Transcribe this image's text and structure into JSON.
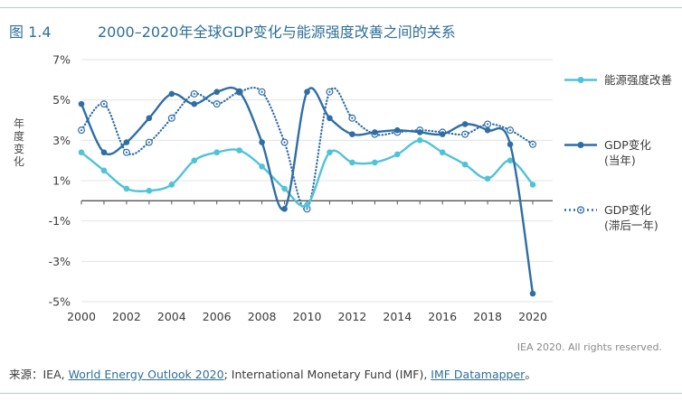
{
  "figure": {
    "number": "图 1.4",
    "title": "2000–2020年全球GDP变化与能源强度改善之间的关系",
    "credit": "IEA 2020. All rights reserved."
  },
  "source": {
    "prefix": "来源：IEA, ",
    "link1": "World Energy Outlook 2020",
    "middle": "; International Monetary Fund (IMF), ",
    "link2": "IMF Datamapper",
    "suffix": "。"
  },
  "legend": {
    "items": [
      {
        "line1": "能源强度改善",
        "line2": ""
      },
      {
        "line1": "GDP变化",
        "line2": "(当年)"
      },
      {
        "line1": "GDP变化",
        "line2": "(滞后一年)"
      }
    ]
  },
  "colors": {
    "energy": "#4fc3d7",
    "gdp": "#2f6ea5",
    "gdp_lag": "#2f6ea5",
    "axis": "#555555",
    "grid": "#e3e3e3"
  },
  "chart_data": {
    "type": "line",
    "ylabel": "年度变化",
    "xlabel": "",
    "ylim": [
      -5,
      7
    ],
    "yticks": [
      -5,
      -3,
      -1,
      1,
      3,
      5,
      7
    ],
    "ytick_labels": [
      "-5%",
      "-3%",
      "-1%",
      "1%",
      "3%",
      "5%",
      "7%"
    ],
    "xticks": [
      2000,
      2002,
      2004,
      2006,
      2008,
      2010,
      2012,
      2014,
      2016,
      2018,
      2020
    ],
    "x": [
      2000,
      2001,
      2002,
      2003,
      2004,
      2005,
      2006,
      2007,
      2008,
      2009,
      2010,
      2011,
      2012,
      2013,
      2014,
      2015,
      2016,
      2017,
      2018,
      2019,
      2020
    ],
    "grid": true,
    "legend_position": "right",
    "series": [
      {
        "name": "能源强度改善",
        "style": "solid",
        "color": "#4fc3d7",
        "marker": "dot",
        "values": [
          2.4,
          1.5,
          0.6,
          0.5,
          0.8,
          2.0,
          2.4,
          2.5,
          1.7,
          0.6,
          -0.2,
          2.4,
          1.9,
          1.9,
          2.3,
          3.0,
          2.4,
          1.8,
          1.1,
          2.0,
          0.8
        ]
      },
      {
        "name": "GDP变化 (当年)",
        "style": "solid",
        "color": "#2f6ea5",
        "marker": "dot",
        "values": [
          4.8,
          2.4,
          2.9,
          4.1,
          5.3,
          4.8,
          5.4,
          5.4,
          2.9,
          -0.4,
          5.4,
          4.1,
          3.3,
          3.4,
          3.5,
          3.4,
          3.3,
          3.8,
          3.5,
          2.8,
          -4.6
        ]
      },
      {
        "name": "GDP变化 (滞后一年)",
        "style": "dotted",
        "color": "#2f6ea5",
        "marker": "ring",
        "values": [
          3.5,
          4.8,
          2.4,
          2.9,
          4.1,
          5.3,
          4.8,
          5.4,
          5.4,
          2.9,
          -0.4,
          5.4,
          4.1,
          3.3,
          3.4,
          3.5,
          3.4,
          3.3,
          3.8,
          3.5,
          2.8
        ]
      }
    ]
  }
}
